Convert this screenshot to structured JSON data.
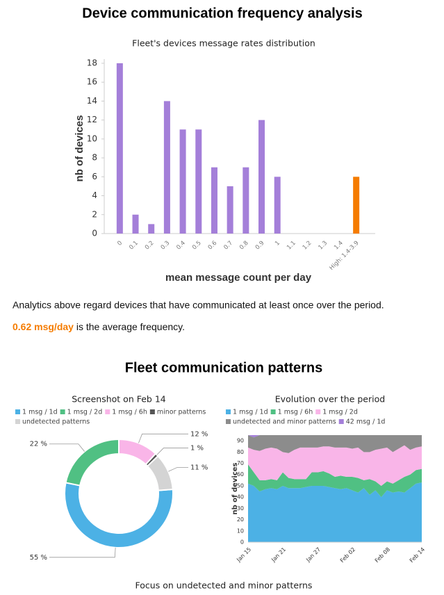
{
  "header": {
    "title": "Device communication frequency analysis"
  },
  "notes": {
    "intro": "Analytics above regard devices that have communicated at least once over the period.",
    "average": "0.62 msg/day",
    "average_suffix": "is the average frequency."
  },
  "section": {
    "title": "Fleet communication patterns"
  },
  "footer": {
    "text": "Focus on undetected and minor patterns"
  },
  "chart_data": [
    {
      "type": "bar",
      "title": "Fleet's devices message rates distribution",
      "x_label": "mean message count per day",
      "y_label": "nb of devices",
      "categories": [
        "0",
        "0.1",
        "0.2",
        "0.3",
        "0.4",
        "0.5",
        "0.6",
        "0.7",
        "0.8",
        "0.9",
        "1",
        "1.1",
        "1.2",
        "1.3",
        "1.4",
        "High: 1.4-3.9"
      ],
      "values": [
        18,
        2,
        1,
        14,
        11,
        11,
        7,
        5,
        7,
        12,
        6,
        0,
        0,
        0,
        0,
        6
      ],
      "colors": [
        "#a47fd9",
        "#a47fd9",
        "#a47fd9",
        "#a47fd9",
        "#a47fd9",
        "#a47fd9",
        "#a47fd9",
        "#a47fd9",
        "#a47fd9",
        "#a47fd9",
        "#a47fd9",
        "#a47fd9",
        "#a47fd9",
        "#a47fd9",
        "#a47fd9",
        "#f57c00"
      ],
      "ylim": [
        0,
        18
      ],
      "yticks": [
        0,
        2,
        4,
        6,
        8,
        10,
        12,
        14,
        16,
        18
      ],
      "grid": false
    },
    {
      "type": "pie",
      "title": "Screenshot on Feb 14",
      "donut": true,
      "legend": "top",
      "categories": [
        "1 msg / 1d",
        "1 msg / 2d",
        "1 msg / 6h",
        "minor patterns",
        "undetected patterns"
      ],
      "values": [
        55,
        22,
        12,
        1,
        11
      ],
      "value_labels": [
        "55 %",
        "22 %",
        "12 %",
        "1 %",
        "11 %"
      ],
      "colors": [
        "#4cb1e5",
        "#50c083",
        "#f9b5e8",
        "#555555",
        "#d4d4d4"
      ]
    },
    {
      "type": "area",
      "stacked": true,
      "title": "Evolution over the period",
      "y_label": "nb of devices",
      "legend": "top",
      "grid": true,
      "categories": [
        "Jan 15",
        null,
        null,
        null,
        null,
        null,
        "Jan 21",
        null,
        null,
        null,
        null,
        null,
        "Jan 27",
        null,
        null,
        null,
        null,
        null,
        "Feb 02",
        null,
        null,
        null,
        null,
        null,
        "Feb 08",
        null,
        null,
        null,
        null,
        null,
        "Feb 14"
      ],
      "ylim": [
        0,
        95
      ],
      "yticks": [
        0,
        10,
        20,
        30,
        40,
        50,
        60,
        70,
        80,
        90
      ],
      "series": [
        {
          "name": "1 msg / 1d",
          "color": "#4cb1e5",
          "values": [
            52,
            50,
            45,
            47,
            48,
            47,
            50,
            48,
            48,
            48,
            49,
            50,
            50,
            50,
            49,
            48,
            47,
            48,
            46,
            44,
            48,
            42,
            46,
            40,
            46,
            44,
            45,
            44,
            48,
            52,
            53
          ]
        },
        {
          "name": "1 msg / 6h",
          "color": "#50c083",
          "values": [
            17,
            12,
            10,
            8,
            8,
            8,
            12,
            9,
            8,
            8,
            7,
            12,
            12,
            13,
            12,
            10,
            12,
            10,
            12,
            13,
            7,
            14,
            8,
            10,
            8,
            8,
            10,
            14,
            12,
            12,
            12
          ]
        },
        {
          "name": "1 msg / 2d",
          "color": "#f9b5e8",
          "values": [
            15,
            20,
            26,
            28,
            28,
            28,
            18,
            22,
            26,
            28,
            28,
            22,
            22,
            22,
            24,
            26,
            25,
            26,
            25,
            27,
            25,
            24,
            28,
            33,
            30,
            28,
            28,
            28,
            22,
            20,
            20
          ]
        },
        {
          "name": "undetected and minor patterns",
          "color": "#8c8c8c",
          "values": [
            11,
            11,
            14,
            12,
            11,
            12,
            15,
            16,
            13,
            11,
            11,
            11,
            11,
            10,
            10,
            11,
            11,
            11,
            12,
            11,
            15,
            15,
            13,
            12,
            11,
            15,
            12,
            9,
            13,
            11,
            10
          ]
        },
        {
          "name": "42 msg / 1d",
          "color": "#a47fd9",
          "values": [
            0,
            2,
            0,
            0,
            0,
            0,
            0,
            0,
            0,
            0,
            0,
            0,
            0,
            0,
            0,
            0,
            0,
            0,
            0,
            0,
            0,
            0,
            0,
            0,
            0,
            0,
            0,
            0,
            0,
            0,
            0
          ]
        }
      ]
    }
  ]
}
